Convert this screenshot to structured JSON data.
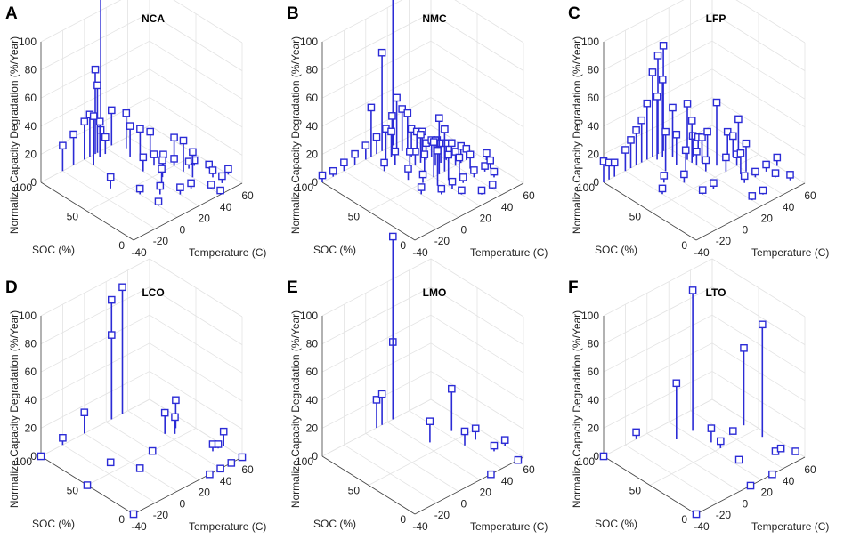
{
  "figure": {
    "common": {
      "zlabel": "Normalize Capacity Degradation (%/Year)",
      "ylabel": "SOC (%)",
      "xlabel": "Temperature (C)",
      "x_ticks": [
        "-40",
        "-20",
        "0",
        "20",
        "40",
        "60"
      ],
      "y_ticks": [
        "0",
        "50",
        "100"
      ],
      "z_ticks": [
        "0",
        "20",
        "40",
        "60",
        "80",
        "100"
      ],
      "marker_color": "#2b2bd6"
    }
  },
  "chart_data": [
    {
      "panel": "A",
      "title": "NCA",
      "type": "scatter3d-stem",
      "xlabel": "Temperature (C)",
      "ylabel": "SOC (%)",
      "zlabel": "Normalize Capacity Degradation (%/Year)",
      "xlim": [
        -40,
        60
      ],
      "ylim": [
        0,
        100
      ],
      "zlim": [
        0,
        100
      ],
      "points": [
        [
          -20,
          100,
          18
        ],
        [
          -10,
          100,
          22
        ],
        [
          0,
          100,
          27
        ],
        [
          0,
          90,
          35
        ],
        [
          5,
          100,
          30
        ],
        [
          10,
          95,
          25
        ],
        [
          10,
          100,
          60
        ],
        [
          12,
          100,
          48
        ],
        [
          15,
          100,
          15
        ],
        [
          15,
          95,
          12
        ],
        [
          15,
          100,
          120
        ],
        [
          25,
          100,
          25
        ],
        [
          25,
          80,
          22
        ],
        [
          30,
          90,
          25
        ],
        [
          30,
          75,
          20
        ],
        [
          35,
          70,
          18
        ],
        [
          20,
          60,
          10
        ],
        [
          20,
          40,
          10
        ],
        [
          30,
          60,
          8
        ],
        [
          30,
          50,
          12
        ],
        [
          40,
          50,
          20
        ],
        [
          40,
          40,
          22
        ],
        [
          40,
          30,
          18
        ],
        [
          40,
          50,
          5
        ],
        [
          45,
          40,
          5
        ],
        [
          20,
          20,
          5
        ],
        [
          30,
          20,
          4
        ],
        [
          40,
          10,
          3
        ],
        [
          50,
          10,
          5
        ],
        [
          40,
          0,
          3
        ],
        [
          50,
          20,
          5
        ],
        [
          60,
          15,
          4
        ],
        [
          0,
          40,
          4
        ],
        [
          0,
          20,
          3
        ],
        [
          10,
          30,
          6
        ],
        [
          50,
          40,
          4
        ],
        [
          55,
          30,
          3
        ],
        [
          25,
          45,
          12
        ],
        [
          -10,
          60,
          8
        ]
      ]
    },
    {
      "panel": "B",
      "title": "NMC",
      "type": "scatter3d-stem",
      "xlabel": "Temperature (C)",
      "ylabel": "SOC (%)",
      "zlabel": "Normalize Capacity Degradation (%/Year)",
      "xlim": [
        -40,
        60
      ],
      "ylim": [
        0,
        100
      ],
      "zlim": [
        0,
        100
      ],
      "points": [
        [
          -40,
          100,
          5
        ],
        [
          -30,
          100,
          4
        ],
        [
          -20,
          100,
          6
        ],
        [
          -10,
          100,
          8
        ],
        [
          0,
          100,
          10
        ],
        [
          10,
          100,
          12
        ],
        [
          15,
          100,
          70
        ],
        [
          25,
          100,
          120
        ],
        [
          5,
          100,
          35
        ],
        [
          10,
          90,
          22
        ],
        [
          15,
          90,
          18
        ],
        [
          20,
          95,
          25
        ],
        [
          20,
          90,
          40
        ],
        [
          25,
          90,
          30
        ],
        [
          30,
          90,
          25
        ],
        [
          25,
          80,
          20
        ],
        [
          30,
          80,
          16
        ],
        [
          35,
          80,
          14
        ],
        [
          20,
          70,
          10
        ],
        [
          25,
          70,
          20
        ],
        [
          30,
          70,
          12
        ],
        [
          35,
          70,
          12
        ],
        [
          40,
          70,
          10
        ],
        [
          20,
          60,
          12
        ],
        [
          30,
          60,
          18
        ],
        [
          35,
          60,
          14
        ],
        [
          40,
          60,
          12
        ],
        [
          45,
          60,
          10
        ],
        [
          40,
          50,
          10
        ],
        [
          45,
          50,
          12
        ],
        [
          50,
          50,
          8
        ],
        [
          25,
          50,
          40
        ],
        [
          30,
          50,
          30
        ],
        [
          20,
          50,
          25
        ],
        [
          0,
          80,
          6
        ],
        [
          10,
          80,
          10
        ],
        [
          15,
          70,
          12
        ],
        [
          5,
          60,
          8
        ],
        [
          10,
          50,
          6
        ],
        [
          0,
          40,
          5
        ],
        [
          10,
          30,
          4
        ],
        [
          20,
          30,
          5
        ],
        [
          30,
          30,
          4
        ],
        [
          40,
          30,
          5
        ],
        [
          50,
          30,
          4
        ],
        [
          30,
          10,
          3
        ],
        [
          40,
          10,
          3
        ],
        [
          50,
          20,
          4
        ],
        [
          55,
          30,
          6
        ],
        [
          60,
          40,
          5
        ],
        [
          20,
          20,
          3
        ],
        [
          15,
          40,
          25
        ],
        [
          25,
          40,
          18
        ],
        [
          35,
          40,
          12
        ],
        [
          45,
          40,
          10
        ]
      ]
    },
    {
      "panel": "C",
      "title": "LFP",
      "type": "scatter3d-stem",
      "xlabel": "Temperature (C)",
      "ylabel": "SOC (%)",
      "zlabel": "Normalize Capacity Degradation (%/Year)",
      "xlim": [
        -40,
        60
      ],
      "ylim": [
        0,
        100
      ],
      "zlim": [
        0,
        100
      ],
      "points": [
        [
          -40,
          100,
          15
        ],
        [
          -35,
          100,
          12
        ],
        [
          -30,
          100,
          10
        ],
        [
          -20,
          100,
          15
        ],
        [
          -15,
          100,
          20
        ],
        [
          -10,
          100,
          25
        ],
        [
          -5,
          100,
          30
        ],
        [
          0,
          100,
          40
        ],
        [
          5,
          100,
          60
        ],
        [
          10,
          100,
          70
        ],
        [
          10,
          95,
          55
        ],
        [
          15,
          100,
          75
        ],
        [
          5,
          95,
          45
        ],
        [
          15,
          90,
          35
        ],
        [
          0,
          80,
          28
        ],
        [
          10,
          80,
          22
        ],
        [
          20,
          80,
          40
        ],
        [
          20,
          75,
          30
        ],
        [
          25,
          80,
          15
        ],
        [
          30,
          80,
          12
        ],
        [
          10,
          70,
          15
        ],
        [
          20,
          70,
          10
        ],
        [
          25,
          70,
          18
        ],
        [
          30,
          70,
          20
        ],
        [
          20,
          60,
          8
        ],
        [
          30,
          60,
          45
        ],
        [
          40,
          60,
          20
        ],
        [
          45,
          60,
          15
        ],
        [
          50,
          60,
          25
        ],
        [
          30,
          50,
          10
        ],
        [
          40,
          50,
          8
        ],
        [
          0,
          60,
          6
        ],
        [
          -10,
          70,
          5
        ],
        [
          -20,
          60,
          4
        ],
        [
          0,
          40,
          3
        ],
        [
          10,
          40,
          4
        ],
        [
          30,
          30,
          5
        ],
        [
          40,
          30,
          4
        ],
        [
          50,
          20,
          3
        ],
        [
          50,
          30,
          5
        ],
        [
          60,
          30,
          6
        ],
        [
          55,
          10,
          4
        ],
        [
          30,
          10,
          3
        ],
        [
          20,
          10,
          3
        ],
        [
          40,
          40,
          20
        ],
        [
          35,
          40,
          15
        ]
      ]
    },
    {
      "panel": "D",
      "title": "LCO",
      "type": "scatter3d-stem",
      "xlabel": "Temperature (C)",
      "ylabel": "SOC (%)",
      "zlabel": "Normalize Capacity Degradation (%/Year)",
      "xlim": [
        -40,
        60
      ],
      "ylim": [
        0,
        100
      ],
      "zlim": [
        0,
        100
      ],
      "points": [
        [
          -40,
          100,
          0
        ],
        [
          -20,
          100,
          5
        ],
        [
          0,
          100,
          15
        ],
        [
          25,
          100,
          85
        ],
        [
          25,
          100,
          60
        ],
        [
          35,
          100,
          90
        ],
        [
          -10,
          60,
          0
        ],
        [
          0,
          40,
          0
        ],
        [
          -40,
          50,
          0
        ],
        [
          -40,
          0,
          0
        ],
        [
          20,
          50,
          0
        ],
        [
          40,
          60,
          15
        ],
        [
          45,
          55,
          12
        ],
        [
          50,
          60,
          20
        ],
        [
          50,
          20,
          5
        ],
        [
          55,
          20,
          3
        ],
        [
          60,
          20,
          10
        ],
        [
          30,
          0,
          0
        ],
        [
          40,
          0,
          0
        ],
        [
          50,
          0,
          0
        ],
        [
          60,
          0,
          0
        ]
      ]
    },
    {
      "panel": "E",
      "title": "LMO",
      "type": "scatter3d-stem",
      "xlabel": "Temperature (C)",
      "ylabel": "SOC (%)",
      "zlabel": "Normalize Capacity Degradation (%/Year)",
      "xlim": [
        -40,
        60
      ],
      "ylim": [
        0,
        100
      ],
      "zlim": [
        0,
        100
      ],
      "points": [
        [
          10,
          100,
          20
        ],
        [
          15,
          100,
          22
        ],
        [
          25,
          100,
          55
        ],
        [
          25,
          100,
          130
        ],
        [
          25,
          60,
          15
        ],
        [
          45,
          60,
          30
        ],
        [
          40,
          40,
          10
        ],
        [
          50,
          40,
          8
        ],
        [
          50,
          20,
          4
        ],
        [
          60,
          20,
          4
        ],
        [
          30,
          0,
          0
        ],
        [
          55,
          0,
          0
        ]
      ]
    },
    {
      "panel": "F",
      "title": "LTO",
      "type": "scatter3d-stem",
      "xlabel": "Temperature (C)",
      "ylabel": "SOC (%)",
      "zlabel": "Normalize Capacity Degradation (%/Year)",
      "xlim": [
        -40,
        60
      ],
      "ylim": [
        0,
        100
      ],
      "zlim": [
        0,
        100
      ],
      "points": [
        [
          -40,
          100,
          0
        ],
        [
          -10,
          100,
          5
        ],
        [
          10,
          80,
          40
        ],
        [
          25,
          80,
          100
        ],
        [
          25,
          60,
          10
        ],
        [
          25,
          50,
          5
        ],
        [
          25,
          30,
          0
        ],
        [
          45,
          60,
          0
        ],
        [
          55,
          60,
          55
        ],
        [
          55,
          40,
          80
        ],
        [
          50,
          20,
          0
        ],
        [
          55,
          20,
          0
        ],
        [
          60,
          10,
          0
        ],
        [
          10,
          0,
          0
        ],
        [
          30,
          0,
          0
        ],
        [
          -40,
          0,
          0
        ]
      ]
    }
  ]
}
